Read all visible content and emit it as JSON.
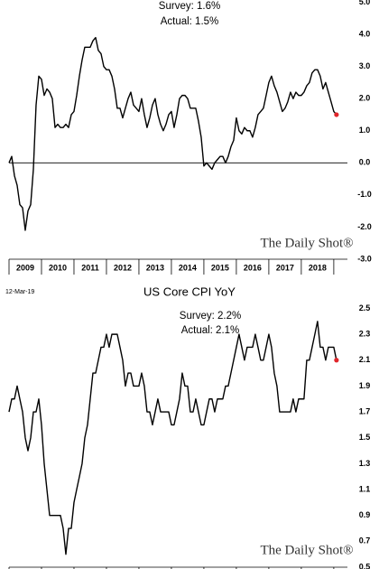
{
  "chart_data": [
    {
      "type": "line",
      "annotations": [
        "Survey: 1.6%",
        "Actual:  1.5%"
      ],
      "watermark": "The Daily Shot®",
      "color": "#000000",
      "last_point_color": "#e0262b",
      "zero_line": true,
      "xlim": [
        2009,
        2019.42
      ],
      "xticks": [
        2009,
        2010,
        2011,
        2012,
        2013,
        2014,
        2015,
        2016,
        2017,
        2018,
        2019
      ],
      "year_labels": [
        "2009",
        "2010",
        "2011",
        "2012",
        "2013",
        "2014",
        "2015",
        "2016",
        "2017",
        "2018"
      ],
      "ylim": [
        -3,
        5.07
      ],
      "yticks": [
        {
          "value": 5,
          "label": "5.0"
        },
        {
          "value": 4,
          "label": "4.0"
        },
        {
          "value": 3,
          "label": "3.0"
        },
        {
          "value": 2,
          "label": "2.0"
        },
        {
          "value": 1,
          "label": "1.0"
        },
        {
          "value": 0,
          "label": "0.0"
        },
        {
          "value": -1,
          "label": "-1.0"
        },
        {
          "value": -2,
          "label": "-2.0"
        },
        {
          "value": -3,
          "label": "-3.0"
        }
      ],
      "x": [
        2009,
        2009.083,
        2009.167,
        2009.25,
        2009.333,
        2009.417,
        2009.5,
        2009.583,
        2009.667,
        2009.75,
        2009.833,
        2009.917,
        2010,
        2010.083,
        2010.167,
        2010.25,
        2010.333,
        2010.417,
        2010.5,
        2010.583,
        2010.667,
        2010.75,
        2010.833,
        2010.917,
        2011,
        2011.083,
        2011.167,
        2011.25,
        2011.333,
        2011.417,
        2011.5,
        2011.583,
        2011.667,
        2011.75,
        2011.833,
        2011.917,
        2012,
        2012.083,
        2012.167,
        2012.25,
        2012.333,
        2012.417,
        2012.5,
        2012.583,
        2012.667,
        2012.75,
        2012.833,
        2012.917,
        2013,
        2013.083,
        2013.167,
        2013.25,
        2013.333,
        2013.417,
        2013.5,
        2013.583,
        2013.667,
        2013.75,
        2013.833,
        2013.917,
        2014,
        2014.083,
        2014.167,
        2014.25,
        2014.333,
        2014.417,
        2014.5,
        2014.583,
        2014.667,
        2014.75,
        2014.833,
        2014.917,
        2015,
        2015.083,
        2015.167,
        2015.25,
        2015.333,
        2015.417,
        2015.5,
        2015.583,
        2015.667,
        2015.75,
        2015.833,
        2015.917,
        2016,
        2016.083,
        2016.167,
        2016.25,
        2016.333,
        2016.417,
        2016.5,
        2016.583,
        2016.667,
        2016.75,
        2016.833,
        2016.917,
        2017,
        2017.083,
        2017.167,
        2017.25,
        2017.333,
        2017.417,
        2017.5,
        2017.583,
        2017.667,
        2017.75,
        2017.833,
        2017.917,
        2018,
        2018.083,
        2018.167,
        2018.25,
        2018.333,
        2018.417,
        2018.5,
        2018.583,
        2018.667,
        2018.75,
        2018.833,
        2018.917,
        2019,
        2019.083
      ],
      "values": [
        0.0,
        0.2,
        -0.4,
        -0.7,
        -1.3,
        -1.4,
        -2.1,
        -1.5,
        -1.3,
        -0.2,
        1.8,
        2.7,
        2.6,
        2.1,
        2.3,
        2.2,
        2.0,
        1.1,
        1.2,
        1.1,
        1.1,
        1.2,
        1.1,
        1.5,
        1.6,
        2.1,
        2.7,
        3.2,
        3.6,
        3.6,
        3.6,
        3.8,
        3.9,
        3.5,
        3.4,
        3.0,
        2.9,
        2.9,
        2.7,
        2.3,
        1.7,
        1.7,
        1.4,
        1.7,
        2.0,
        2.2,
        1.8,
        1.7,
        1.6,
        2.0,
        1.5,
        1.1,
        1.4,
        1.8,
        2.0,
        1.5,
        1.2,
        1.0,
        1.2,
        1.5,
        1.6,
        1.1,
        1.5,
        2.0,
        2.1,
        2.1,
        2.0,
        1.7,
        1.7,
        1.7,
        1.3,
        0.8,
        -0.1,
        0.0,
        -0.1,
        -0.2,
        0.0,
        0.1,
        0.2,
        0.2,
        0.0,
        0.2,
        0.5,
        0.7,
        1.4,
        1.0,
        0.9,
        1.1,
        1.0,
        1.0,
        0.8,
        1.1,
        1.5,
        1.6,
        1.7,
        2.1,
        2.5,
        2.7,
        2.4,
        2.2,
        1.9,
        1.6,
        1.7,
        1.9,
        2.2,
        2.0,
        2.2,
        2.1,
        2.1,
        2.2,
        2.4,
        2.5,
        2.8,
        2.9,
        2.9,
        2.7,
        2.3,
        2.5,
        2.2,
        1.9,
        1.6,
        1.5
      ]
    },
    {
      "type": "line",
      "date": "12-Mar-19",
      "title": "US Core CPI YoY",
      "annotations": [
        "Survey: 2.2%",
        "Actual:  2.1%"
      ],
      "watermark": "The Daily Shot®",
      "color": "#000000",
      "last_point_color": "#e0262b",
      "zero_line": false,
      "xlim": [
        2009,
        2019.42
      ],
      "xticks": [
        2009,
        2010,
        2011,
        2012,
        2013,
        2014,
        2015,
        2016,
        2017,
        2018,
        2019
      ],
      "ylim": [
        0.5,
        2.58
      ],
      "yticks": [
        2.5,
        2.3,
        2.1,
        1.9,
        1.7,
        1.5,
        1.3,
        1.1,
        0.9,
        0.7,
        0.5
      ],
      "x": [
        2009,
        2009.083,
        2009.167,
        2009.25,
        2009.333,
        2009.417,
        2009.5,
        2009.583,
        2009.667,
        2009.75,
        2009.833,
        2009.917,
        2010,
        2010.083,
        2010.167,
        2010.25,
        2010.333,
        2010.417,
        2010.5,
        2010.583,
        2010.667,
        2010.75,
        2010.833,
        2010.917,
        2011,
        2011.083,
        2011.167,
        2011.25,
        2011.333,
        2011.417,
        2011.5,
        2011.583,
        2011.667,
        2011.75,
        2011.833,
        2011.917,
        2012,
        2012.083,
        2012.167,
        2012.25,
        2012.333,
        2012.417,
        2012.5,
        2012.583,
        2012.667,
        2012.75,
        2012.833,
        2012.917,
        2013,
        2013.083,
        2013.167,
        2013.25,
        2013.333,
        2013.417,
        2013.5,
        2013.583,
        2013.667,
        2013.75,
        2013.833,
        2013.917,
        2014,
        2014.083,
        2014.167,
        2014.25,
        2014.333,
        2014.417,
        2014.5,
        2014.583,
        2014.667,
        2014.75,
        2014.833,
        2014.917,
        2015,
        2015.083,
        2015.167,
        2015.25,
        2015.333,
        2015.417,
        2015.5,
        2015.583,
        2015.667,
        2015.75,
        2015.833,
        2015.917,
        2016,
        2016.083,
        2016.167,
        2016.25,
        2016.333,
        2016.417,
        2016.5,
        2016.583,
        2016.667,
        2016.75,
        2016.833,
        2016.917,
        2017,
        2017.083,
        2017.167,
        2017.25,
        2017.333,
        2017.417,
        2017.5,
        2017.583,
        2017.667,
        2017.75,
        2017.833,
        2017.917,
        2018,
        2018.083,
        2018.167,
        2018.25,
        2018.333,
        2018.417,
        2018.5,
        2018.583,
        2018.667,
        2018.75,
        2018.833,
        2018.917,
        2019,
        2019.083
      ],
      "values": [
        1.7,
        1.8,
        1.8,
        1.9,
        1.8,
        1.7,
        1.5,
        1.4,
        1.5,
        1.7,
        1.7,
        1.8,
        1.6,
        1.3,
        1.1,
        0.9,
        0.9,
        0.9,
        0.9,
        0.9,
        0.8,
        0.6,
        0.8,
        0.8,
        1.0,
        1.1,
        1.2,
        1.3,
        1.5,
        1.6,
        1.8,
        2.0,
        2.0,
        2.1,
        2.2,
        2.2,
        2.3,
        2.2,
        2.3,
        2.3,
        2.3,
        2.2,
        2.1,
        1.9,
        2.0,
        2.0,
        1.9,
        1.9,
        1.9,
        2.0,
        1.9,
        1.7,
        1.7,
        1.6,
        1.7,
        1.8,
        1.7,
        1.7,
        1.7,
        1.7,
        1.6,
        1.6,
        1.7,
        1.8,
        2.0,
        1.9,
        1.9,
        1.7,
        1.7,
        1.8,
        1.7,
        1.6,
        1.6,
        1.7,
        1.8,
        1.8,
        1.7,
        1.8,
        1.8,
        1.8,
        1.9,
        1.9,
        2.0,
        2.1,
        2.2,
        2.3,
        2.2,
        2.1,
        2.2,
        2.2,
        2.2,
        2.3,
        2.2,
        2.1,
        2.1,
        2.2,
        2.3,
        2.2,
        2.0,
        1.9,
        1.7,
        1.7,
        1.7,
        1.7,
        1.7,
        1.8,
        1.7,
        1.8,
        1.8,
        1.8,
        2.1,
        2.1,
        2.2,
        2.3,
        2.4,
        2.2,
        2.2,
        2.1,
        2.2,
        2.2,
        2.2,
        2.1
      ]
    }
  ]
}
